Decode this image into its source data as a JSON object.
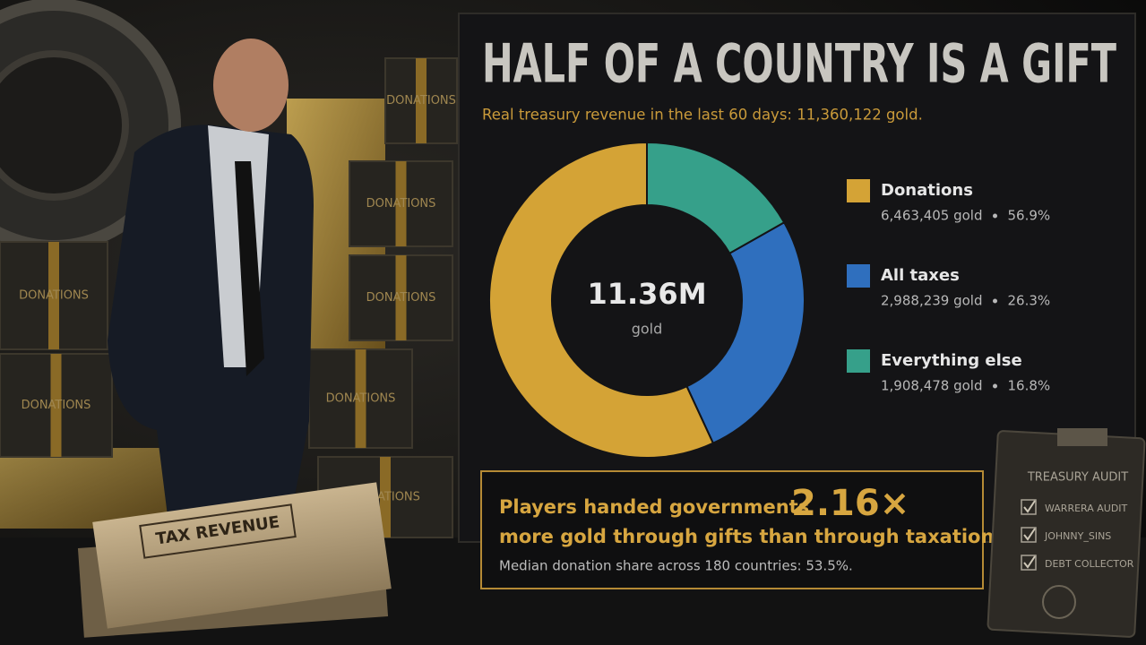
{
  "chart_data": {
    "type": "pie",
    "title": "HALF OF A COUNTRY IS A GIFT",
    "subtitle": "Real treasury revenue in the last 60 days: 11,360,122 gold.",
    "categories": [
      "Donations",
      "All taxes",
      "Everything else"
    ],
    "values": [
      56.9,
      26.3,
      16.8
    ],
    "value_labels": [
      "56.9%",
      "26.3%",
      "16.8%"
    ],
    "amount_labels": [
      "6,463,405 gold",
      "2,988,239 gold",
      "1,908,478 gold"
    ],
    "colors": [
      "#d4a336",
      "#2f6fbe",
      "#36a08a"
    ],
    "center_label": "11.36M",
    "center_sublabel": "gold",
    "callout": {
      "line1": "Players handed governments",
      "highlight": "2.16×",
      "line2": "more gold through gifts than through taxation.",
      "note": "Median donation share across 180 countries: 53.5%."
    }
  },
  "scene": {
    "box_labels": [
      "DONATIONS",
      "DONATIONS",
      "DONATIONS",
      "DONATIONS",
      "DONATIONS",
      "DONATIONS",
      "DONATIONS"
    ],
    "folder_label": "TAX REVENUE",
    "clipboard": {
      "title": "TREASURY AUDIT",
      "items": [
        "WARRERA AUDIT",
        "JOHNNY_SINS",
        "DEBT COLLECTOR"
      ]
    }
  }
}
